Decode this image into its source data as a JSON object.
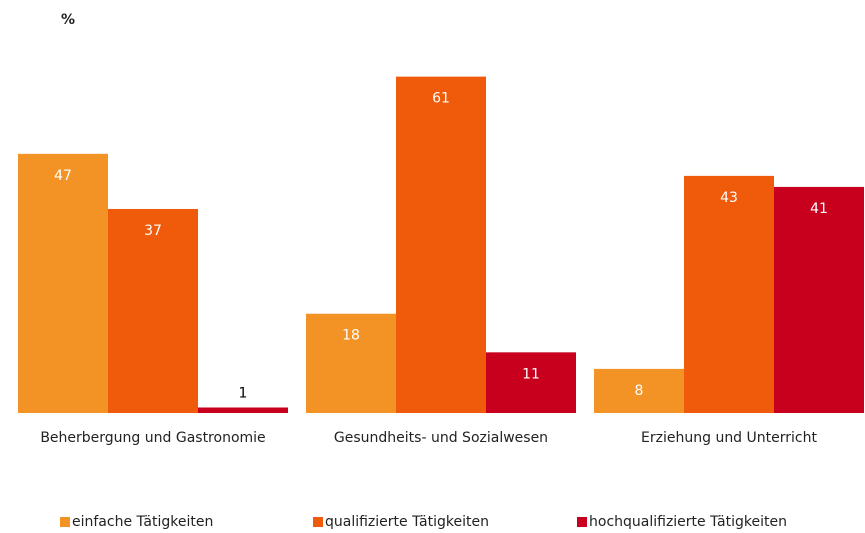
{
  "chart_data": {
    "type": "bar",
    "ylabel": "%",
    "categories": [
      "Beherbergung und Gastronomie",
      "Gesundheits- und Sozialwesen",
      "Erziehung und Unterricht"
    ],
    "series": [
      {
        "name": "einfache Tätigkeiten",
        "color": "#f39325",
        "values": [
          47,
          18,
          8
        ]
      },
      {
        "name": "qualifizierte Tätigkeiten",
        "color": "#ef5a0b",
        "values": [
          37,
          61,
          43
        ]
      },
      {
        "name": "hochqualifizierte Tätigkeiten",
        "color": "#c8001e",
        "values": [
          1,
          11,
          41
        ]
      }
    ],
    "ylim": [
      0,
      70
    ],
    "grid": false
  }
}
